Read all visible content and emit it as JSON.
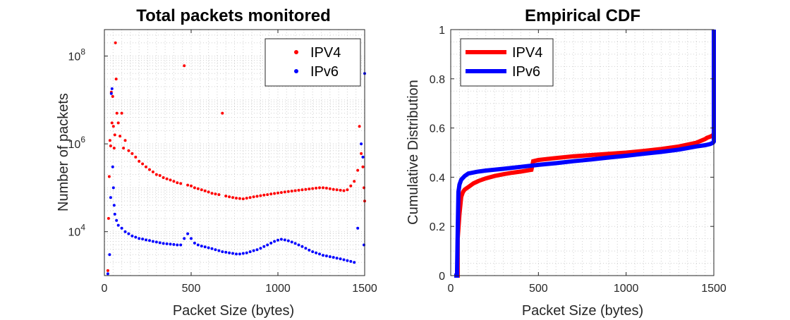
{
  "chart_data": [
    {
      "type": "scatter",
      "title": "Total packets monitored",
      "xlabel": "Packet Size (bytes)",
      "ylabel": "Number of packets",
      "yscale": "log",
      "xlim": [
        0,
        1500
      ],
      "ylim": [
        1000,
        400000000
      ],
      "grid": "dotted-minor",
      "legend_position": "top-right",
      "x_ticks": [
        "0",
        "500",
        "1000",
        "1500"
      ],
      "y_ticks": [
        {
          "base": "10",
          "exp": "4"
        },
        {
          "base": "10",
          "exp": "6"
        },
        {
          "base": "10",
          "exp": "8"
        }
      ],
      "series": [
        {
          "name": "IPV4",
          "color": "#ff0000",
          "marker": "dot",
          "points": [
            [
              20,
              1300
            ],
            [
              24,
              20000
            ],
            [
              28,
              180000
            ],
            [
              32,
              1200000
            ],
            [
              36,
              900000
            ],
            [
              40,
              15000000
            ],
            [
              44,
              3000000
            ],
            [
              48,
              12000000
            ],
            [
              52,
              2500000
            ],
            [
              56,
              800000
            ],
            [
              60,
              1600000
            ],
            [
              64,
              200000000
            ],
            [
              68,
              30000000
            ],
            [
              72,
              5000000
            ],
            [
              80,
              3000000
            ],
            [
              90,
              1500000
            ],
            [
              100,
              5000000
            ],
            [
              110,
              800000
            ],
            [
              120,
              1200000
            ],
            [
              140,
              700000
            ],
            [
              160,
              600000
            ],
            [
              180,
              500000
            ],
            [
              200,
              400000
            ],
            [
              220,
              350000
            ],
            [
              240,
              300000
            ],
            [
              260,
              260000
            ],
            [
              280,
              230000
            ],
            [
              300,
              200000
            ],
            [
              320,
              190000
            ],
            [
              340,
              170000
            ],
            [
              360,
              160000
            ],
            [
              380,
              150000
            ],
            [
              400,
              140000
            ],
            [
              420,
              130000
            ],
            [
              440,
              125000
            ],
            [
              460,
              60000000
            ],
            [
              480,
              115000
            ],
            [
              500,
              110000
            ],
            [
              520,
              100000
            ],
            [
              540,
              95000
            ],
            [
              560,
              90000
            ],
            [
              580,
              85000
            ],
            [
              600,
              80000
            ],
            [
              620,
              75000
            ],
            [
              640,
              72000
            ],
            [
              660,
              70000
            ],
            [
              680,
              5000000
            ],
            [
              700,
              65000
            ],
            [
              720,
              62000
            ],
            [
              740,
              60000
            ],
            [
              760,
              58000
            ],
            [
              780,
              57000
            ],
            [
              800,
              56000
            ],
            [
              820,
              58000
            ],
            [
              840,
              60000
            ],
            [
              860,
              62000
            ],
            [
              880,
              64000
            ],
            [
              900,
              66000
            ],
            [
              920,
              68000
            ],
            [
              940,
              70000
            ],
            [
              960,
              72000
            ],
            [
              980,
              74000
            ],
            [
              1000,
              76000
            ],
            [
              1020,
              78000
            ],
            [
              1040,
              80000
            ],
            [
              1060,
              82000
            ],
            [
              1080,
              84000
            ],
            [
              1100,
              86000
            ],
            [
              1120,
              88000
            ],
            [
              1140,
              90000
            ],
            [
              1160,
              92000
            ],
            [
              1180,
              94000
            ],
            [
              1200,
              96000
            ],
            [
              1220,
              98000
            ],
            [
              1240,
              100000
            ],
            [
              1260,
              100000
            ],
            [
              1280,
              98000
            ],
            [
              1300,
              95000
            ],
            [
              1320,
              92000
            ],
            [
              1340,
              90000
            ],
            [
              1360,
              88000
            ],
            [
              1380,
              86000
            ],
            [
              1400,
              90000
            ],
            [
              1420,
              110000
            ],
            [
              1440,
              140000
            ],
            [
              1460,
              250000
            ],
            [
              1470,
              2500000
            ],
            [
              1480,
              600000
            ],
            [
              1490,
              300000
            ],
            [
              1496,
              100000
            ],
            [
              1500,
              50000
            ]
          ]
        },
        {
          "name": "IPv6",
          "color": "#0000ff",
          "marker": "dot",
          "points": [
            [
              20,
              1100
            ],
            [
              30,
              3000
            ],
            [
              36,
              60000
            ],
            [
              40,
              14000000
            ],
            [
              44,
              18000000
            ],
            [
              48,
              300000
            ],
            [
              52,
              100000
            ],
            [
              56,
              40000
            ],
            [
              60,
              25000
            ],
            [
              70,
              18000
            ],
            [
              80,
              14000
            ],
            [
              100,
              12000
            ],
            [
              120,
              10000
            ],
            [
              140,
              9000
            ],
            [
              160,
              8000
            ],
            [
              180,
              7500
            ],
            [
              200,
              7000
            ],
            [
              220,
              6800
            ],
            [
              240,
              6500
            ],
            [
              260,
              6300
            ],
            [
              280,
              6000
            ],
            [
              300,
              5800
            ],
            [
              320,
              5600
            ],
            [
              340,
              5400
            ],
            [
              360,
              5300
            ],
            [
              380,
              5200
            ],
            [
              400,
              5100
            ],
            [
              420,
              5000
            ],
            [
              440,
              5000
            ],
            [
              460,
              7000
            ],
            [
              480,
              9000
            ],
            [
              500,
              7000
            ],
            [
              520,
              5500
            ],
            [
              540,
              5000
            ],
            [
              560,
              4700
            ],
            [
              580,
              4500
            ],
            [
              600,
              4300
            ],
            [
              620,
              4100
            ],
            [
              640,
              3900
            ],
            [
              660,
              3700
            ],
            [
              680,
              3500
            ],
            [
              700,
              3400
            ],
            [
              720,
              3300
            ],
            [
              740,
              3200
            ],
            [
              760,
              3100
            ],
            [
              780,
              3100
            ],
            [
              800,
              3200
            ],
            [
              820,
              3300
            ],
            [
              840,
              3500
            ],
            [
              860,
              3700
            ],
            [
              880,
              3900
            ],
            [
              900,
              4200
            ],
            [
              920,
              4600
            ],
            [
              940,
              5000
            ],
            [
              960,
              5500
            ],
            [
              980,
              6000
            ],
            [
              1000,
              6400
            ],
            [
              1020,
              6700
            ],
            [
              1040,
              6500
            ],
            [
              1060,
              6200
            ],
            [
              1080,
              5800
            ],
            [
              1100,
              5400
            ],
            [
              1120,
              5000
            ],
            [
              1140,
              4600
            ],
            [
              1160,
              4200
            ],
            [
              1180,
              3800
            ],
            [
              1200,
              3500
            ],
            [
              1220,
              3300
            ],
            [
              1240,
              3100
            ],
            [
              1260,
              2900
            ],
            [
              1280,
              2800
            ],
            [
              1300,
              2700
            ],
            [
              1320,
              2600
            ],
            [
              1340,
              2500
            ],
            [
              1360,
              2400
            ],
            [
              1380,
              2300
            ],
            [
              1400,
              2200
            ],
            [
              1420,
              2100
            ],
            [
              1440,
              2000
            ],
            [
              1460,
              12000
            ],
            [
              1480,
              1000000
            ],
            [
              1490,
              500000
            ],
            [
              1496,
              5000
            ],
            [
              1500,
              40000000
            ]
          ]
        }
      ]
    },
    {
      "type": "line",
      "title": "Empirical CDF",
      "xlabel": "Packet Size (bytes)",
      "ylabel": "Cumulative Distribution",
      "xlim": [
        0,
        1500
      ],
      "ylim": [
        0,
        1
      ],
      "grid": "dotted-minor",
      "legend_position": "top-left",
      "x_ticks": [
        "0",
        "500",
        "1000",
        "1500"
      ],
      "y_ticks": [
        "0",
        "0.2",
        "0.4",
        "0.6",
        "0.8",
        "1"
      ],
      "series": [
        {
          "name": "IPV4",
          "color": "#ff0000",
          "x": [
            20,
            40,
            40,
            50,
            60,
            70,
            80,
            100,
            130,
            160,
            200,
            250,
            300,
            350,
            400,
            460,
            470,
            500,
            600,
            700,
            800,
            900,
            1000,
            1100,
            1200,
            1300,
            1400,
            1450,
            1460,
            1480,
            1495,
            1500,
            1500
          ],
          "y": [
            0,
            0,
            0.15,
            0.25,
            0.32,
            0.34,
            0.35,
            0.36,
            0.375,
            0.385,
            0.395,
            0.405,
            0.412,
            0.418,
            0.423,
            0.43,
            0.465,
            0.47,
            0.478,
            0.485,
            0.49,
            0.495,
            0.5,
            0.507,
            0.515,
            0.525,
            0.54,
            0.555,
            0.56,
            0.565,
            0.57,
            0.58,
            1.0
          ]
        },
        {
          "name": "IPv6",
          "color": "#0000ff",
          "x": [
            20,
            36,
            36,
            40,
            44,
            50,
            60,
            80,
            100,
            150,
            200,
            300,
            400,
            500,
            600,
            700,
            800,
            900,
            1000,
            1100,
            1200,
            1300,
            1400,
            1450,
            1480,
            1495,
            1500,
            1500
          ],
          "y": [
            0,
            0,
            0.02,
            0.18,
            0.34,
            0.37,
            0.39,
            0.405,
            0.415,
            0.422,
            0.427,
            0.434,
            0.442,
            0.45,
            0.457,
            0.465,
            0.472,
            0.48,
            0.487,
            0.495,
            0.503,
            0.512,
            0.525,
            0.53,
            0.535,
            0.54,
            0.545,
            1.0
          ]
        }
      ]
    }
  ]
}
